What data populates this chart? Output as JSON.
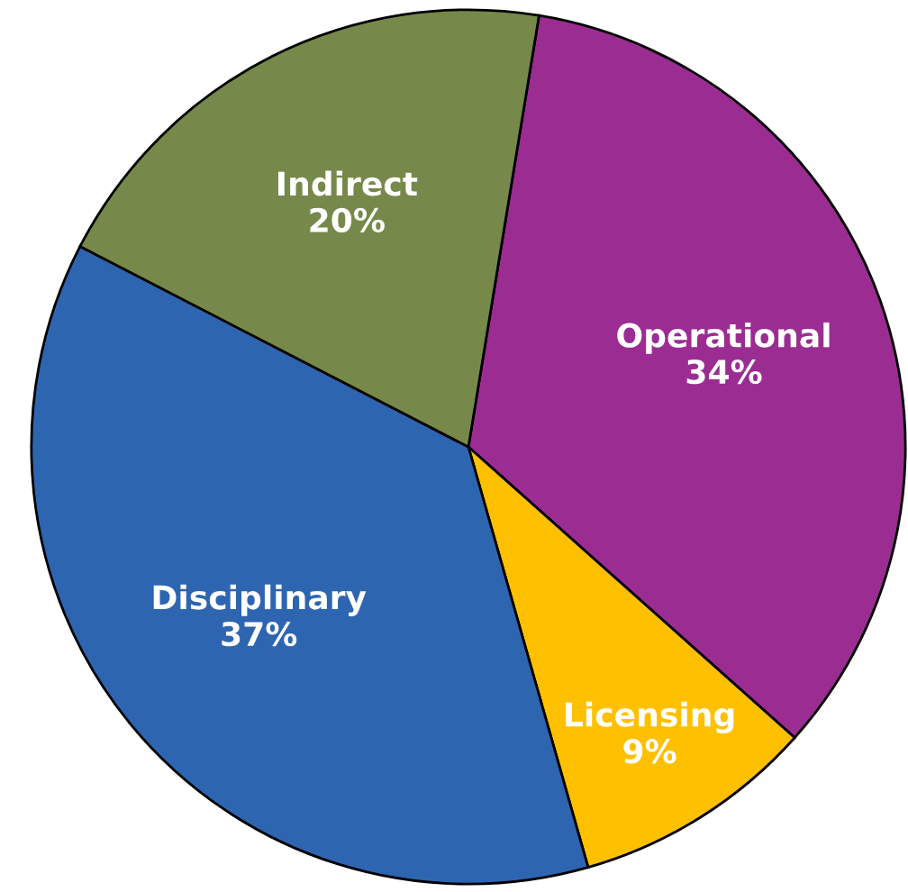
{
  "chart_data": {
    "type": "pie",
    "categories": [
      "Operational",
      "Licensing",
      "Disciplinary",
      "Indirect"
    ],
    "values": [
      34,
      9,
      37,
      20
    ],
    "value_labels": [
      "34%",
      "9%",
      "37%",
      "20%"
    ],
    "colors": [
      "#9b2d92",
      "#ffc000",
      "#2e65b0",
      "#76894a"
    ],
    "legend": false
  }
}
